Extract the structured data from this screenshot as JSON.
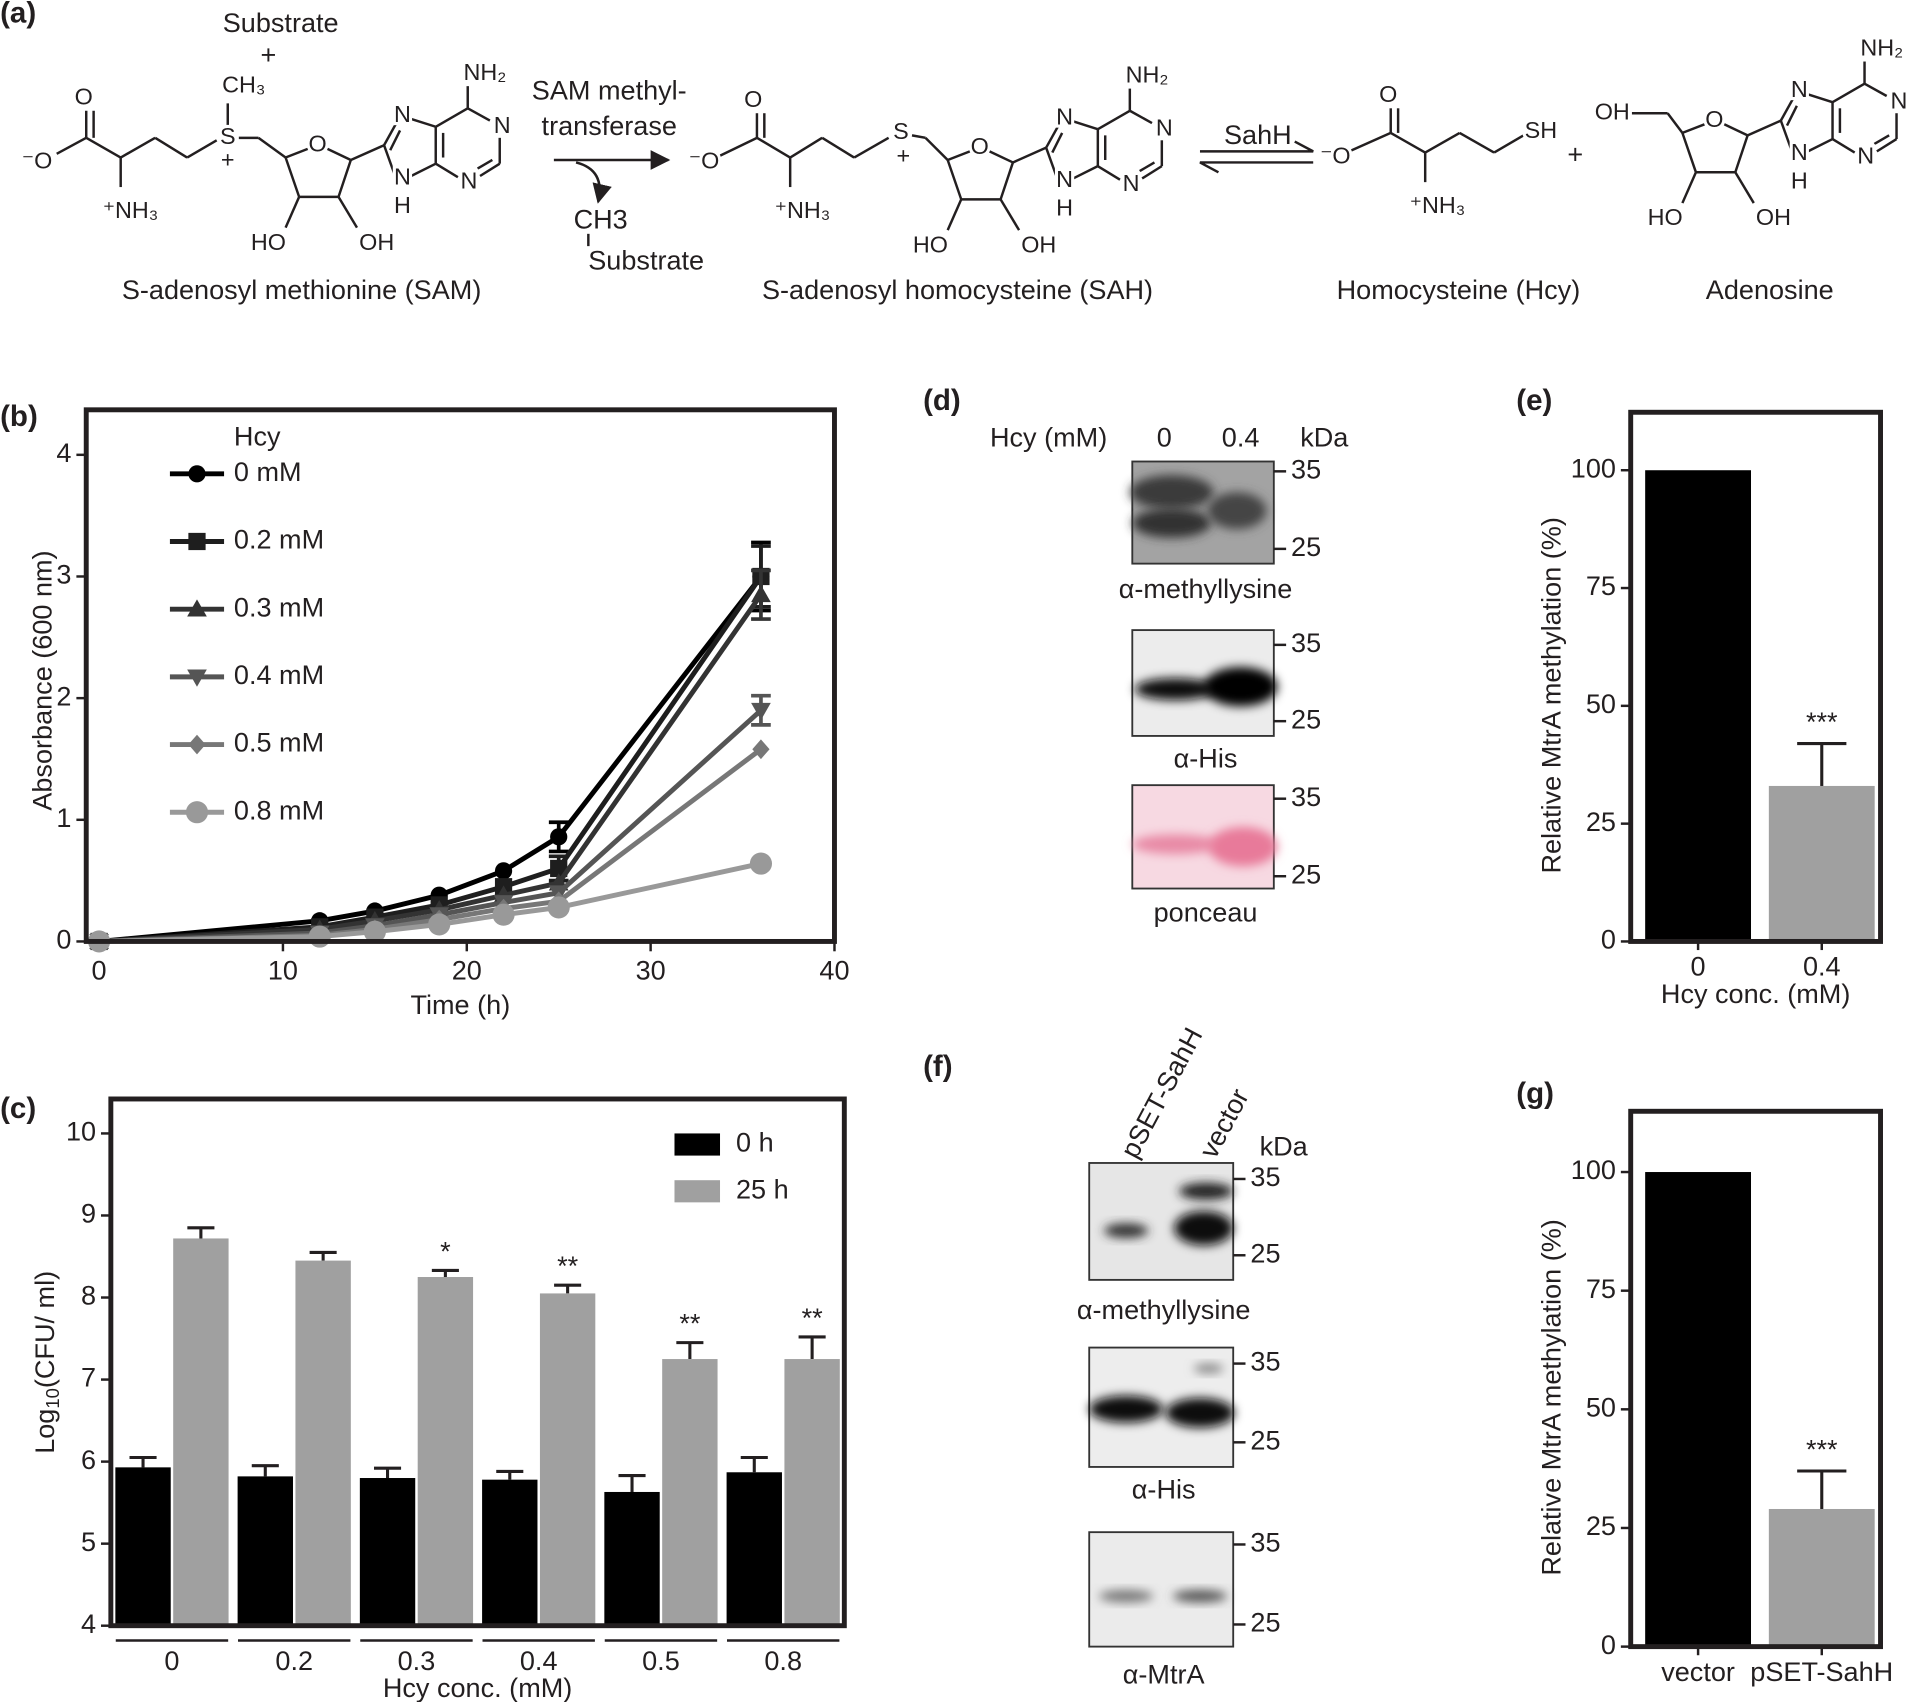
{
  "panels": [
    "(a)",
    "(b)",
    "(c)",
    "(d)",
    "(e)",
    "(f)",
    "(g)"
  ],
  "scheme": {
    "substrate_top": "Substrate",
    "plus_top": "+",
    "enzyme": [
      "SAM methyl-",
      "transferase"
    ],
    "byproduct": "CH3",
    "substrate_bottom": "Substrate",
    "sahh": "SahH",
    "plus": "+",
    "sam": {
      "name": "S-adenosyl methionine (SAM)",
      "atoms": [
        "O",
        "⁻O",
        "⁺NH₃",
        "S",
        "+",
        "CH₃",
        "O",
        "HO",
        "OH",
        "N",
        "N",
        "N",
        "N",
        "H",
        "NH₂"
      ]
    },
    "sah": {
      "name": "S-adenosyl homocysteine (SAH)",
      "atoms": [
        "O",
        "⁻O",
        "⁺NH₃",
        "S",
        "+",
        "O",
        "HO",
        "OH",
        "N",
        "N",
        "N",
        "N",
        "H",
        "NH₂"
      ]
    },
    "hcy": {
      "name": "Homocysteine (Hcy)",
      "atoms": [
        "O",
        "⁻O",
        "⁺NH₃",
        "SH"
      ]
    },
    "adenosine": {
      "name": "Adenosine",
      "atoms": [
        "OH",
        "O",
        "HO",
        "OH",
        "N",
        "N",
        "N",
        "N",
        "H",
        "NH₂"
      ]
    }
  },
  "blot_d": {
    "header": "Hcy (mM)",
    "lanes": [
      "0",
      "0.4"
    ],
    "unit": "kDa",
    "membranes": [
      {
        "label": "α-methyllysine",
        "markers": [
          35,
          25
        ]
      },
      {
        "label": "α-His",
        "markers": [
          35,
          25
        ]
      },
      {
        "label": "ponceau",
        "markers": [
          35,
          25
        ]
      }
    ]
  },
  "blot_f": {
    "lanes": [
      "pSET-SahH",
      "vector"
    ],
    "unit": "kDa",
    "membranes": [
      {
        "label": "α-methyllysine",
        "markers": [
          35,
          25
        ]
      },
      {
        "label": "α-His",
        "markers": [
          35,
          25
        ]
      },
      {
        "label": "α-MtrA",
        "markers": [
          35,
          25
        ]
      }
    ]
  },
  "chart_data": [
    {
      "type": "line",
      "xlabel": "Time (h)",
      "ylabel": "Absorbance (600 nm)",
      "legend_title": "Hcy",
      "legend": "upper left",
      "x": [
        0,
        12,
        15,
        18.5,
        22,
        25,
        36
      ],
      "xlim": [
        -0.7,
        40
      ],
      "xticks": [
        0,
        10,
        20,
        30,
        40
      ],
      "ylim": [
        0,
        4.37
      ],
      "yticks": [
        0,
        1,
        2,
        3,
        4
      ],
      "series": [
        {
          "name": "0 mM",
          "color": "#000000",
          "marker": "circle",
          "values": [
            0,
            0.17,
            0.25,
            0.38,
            0.58,
            0.86,
            3.0
          ],
          "errors": [
            null,
            null,
            null,
            null,
            null,
            0.12,
            0.28
          ]
        },
        {
          "name": "0.2 mM",
          "color": "#1e1e1e",
          "marker": "square",
          "values": [
            0,
            0.12,
            0.2,
            0.3,
            0.45,
            0.6,
            3.0
          ],
          "errors": [
            null,
            null,
            null,
            null,
            null,
            0.1,
            0.25
          ]
        },
        {
          "name": "0.3 mM",
          "color": "#333333",
          "marker": "triangle-up",
          "values": [
            0,
            0.1,
            0.17,
            0.26,
            0.38,
            0.48,
            2.85
          ],
          "errors": [
            null,
            null,
            null,
            null,
            null,
            null,
            0.2
          ]
        },
        {
          "name": "0.4 mM",
          "color": "#555555",
          "marker": "triangle-down",
          "values": [
            0,
            0.07,
            0.13,
            0.22,
            0.32,
            0.4,
            1.9
          ],
          "errors": [
            null,
            null,
            null,
            null,
            null,
            null,
            0.12
          ]
        },
        {
          "name": "0.5 mM",
          "color": "#777777",
          "marker": "diamond",
          "values": [
            0,
            0.05,
            0.1,
            0.18,
            0.27,
            0.33,
            1.58
          ],
          "errors": [
            null,
            null,
            null,
            null,
            null,
            null,
            null
          ]
        },
        {
          "name": "0.8 mM",
          "color": "#999999",
          "marker": "large-circle",
          "values": [
            0,
            0.04,
            0.08,
            0.14,
            0.22,
            0.28,
            0.64
          ],
          "errors": [
            null,
            null,
            null,
            null,
            null,
            null,
            null
          ]
        }
      ]
    },
    {
      "type": "grouped_bar",
      "xlabel": "Hcy conc. (mM)",
      "ylabel": {
        "main": "Log",
        "sub": "10",
        "rest": "(CFU/ ml)"
      },
      "legend": "upper right",
      "categories": [
        "0",
        "0.2",
        "0.3",
        "0.4",
        "0.5",
        "0.8"
      ],
      "ylim": [
        4,
        10.42
      ],
      "yticks": [
        4,
        5,
        6,
        7,
        8,
        9,
        10
      ],
      "series": [
        {
          "name": "0 h",
          "color": "#000000",
          "values": [
            5.93,
            5.82,
            5.8,
            5.78,
            5.63,
            5.87
          ],
          "errors": [
            0.12,
            0.13,
            0.12,
            0.1,
            0.2,
            0.18
          ]
        },
        {
          "name": "25 h",
          "color": "#a0a0a0",
          "values": [
            8.72,
            8.45,
            8.25,
            8.05,
            7.25,
            7.25
          ],
          "errors": [
            0.13,
            0.1,
            0.08,
            0.1,
            0.2,
            0.27
          ],
          "annotations": [
            null,
            null,
            "*",
            "**",
            "**",
            "**"
          ]
        }
      ]
    },
    {
      "type": "bar",
      "xlabel": "Hcy conc. (mM)",
      "ylabel": "Relative MtrA methylation (%)",
      "categories": [
        "0",
        "0.4"
      ],
      "values": [
        100,
        33
      ],
      "errors": [
        null,
        9
      ],
      "annotations": [
        null,
        "***"
      ],
      "colors": [
        "#000000",
        "#a0a0a0"
      ],
      "ylim": [
        0,
        112.3
      ],
      "yticks": [
        0,
        25,
        50,
        75,
        100
      ]
    },
    {
      "type": "bar",
      "ylabel": "Relative MtrA methylation (%)",
      "categories": [
        "vector",
        "pSET-SahH"
      ],
      "values": [
        100,
        29
      ],
      "errors": [
        null,
        8
      ],
      "annotations": [
        null,
        "***"
      ],
      "colors": [
        "#000000",
        "#a0a0a0"
      ],
      "ylim": [
        0,
        112.8
      ],
      "yticks": [
        0,
        25,
        50,
        75,
        100
      ]
    }
  ]
}
